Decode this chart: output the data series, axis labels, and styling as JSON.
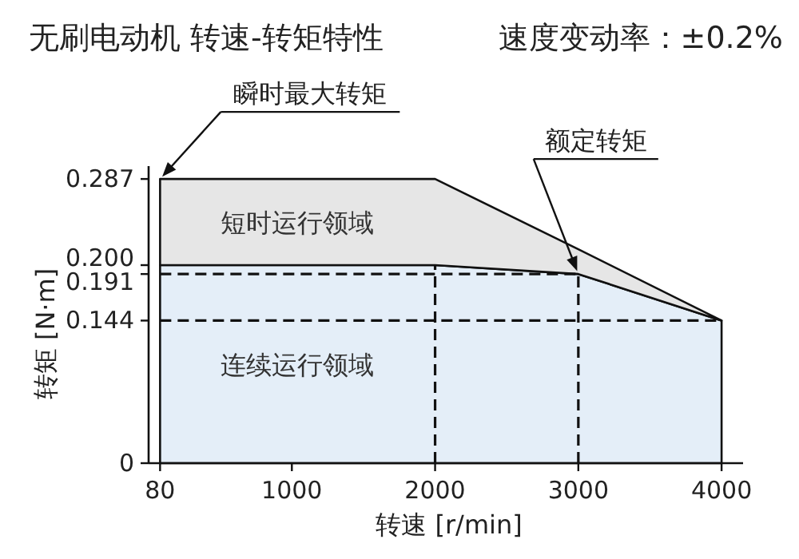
{
  "chart_data": {
    "type": "area",
    "title": "无刷电动机 转速-转矩特性",
    "subtitle": "速度变动率：±0.2%",
    "xlabel": "转速 [r/min]",
    "ylabel": "转矩 [N·m]",
    "x": [
      80,
      2000,
      3000,
      4000
    ],
    "stacked": true,
    "series": [
      {
        "name": "连续运行领域",
        "color": "#e4eef8",
        "values": [
          0.2,
          0.2,
          0.191,
          0.144
        ]
      },
      {
        "name": "短时运行领域",
        "color": "#e6e6e6",
        "values": [
          0.087,
          0.087,
          0.025,
          0
        ]
      }
    ],
    "xlim": [
      0,
      4150
    ],
    "ylim": [
      0,
      0.3
    ],
    "xticks": [
      80,
      1000,
      2000,
      3000,
      4000
    ],
    "yticks": [
      0,
      0.144,
      0.191,
      {
        "value": 0.2,
        "label": "0.200"
      },
      0.287
    ],
    "ref_lines": [
      {
        "axis": "y",
        "value": 0.191,
        "line_style": "dashed"
      },
      {
        "axis": "y",
        "value": 0.144,
        "line_style": "dashed"
      },
      {
        "axis": "x",
        "value": 2000,
        "line_style": "dashed"
      },
      {
        "axis": "x",
        "value": 3000,
        "line_style": "dashed"
      }
    ],
    "annotations": [
      {
        "text": "瞬时最大转矩",
        "x": 80,
        "y": 0.287
      },
      {
        "text": "额定转矩",
        "x": 3000,
        "y": 0.191
      }
    ],
    "grid": false
  }
}
